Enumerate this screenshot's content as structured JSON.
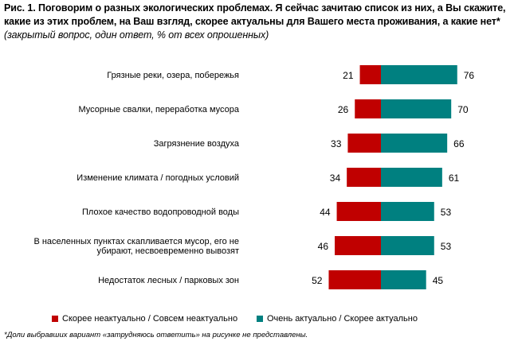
{
  "title": {
    "main": "Рис. 1. Поговорим о разных экологических проблемах. Я сейчас зачитаю список из них, а Вы скажите, какие из этих проблем, на Ваш взгляд, скорее актуальны для Вашего места проживания, а какие нет*",
    "note": "(закрытый вопрос, один ответ, % от всех опрошенных)"
  },
  "footnote": "*Доли выбравших вариант «затрудняюсь ответить» на рисунке не представлены.",
  "colors": {
    "not_relevant": "#c00000",
    "relevant": "#008080"
  },
  "chart_data": {
    "type": "bar",
    "orientation": "horizontal-diverging",
    "categories": [
      "Грязные реки, озера, побережья",
      "Мусорные свалки, переработка мусора",
      "Загрязнение воздуха",
      "Изменение климата / погодных условий",
      "Плохое качество водопроводной воды",
      "В населенных пунктах скапливается мусор, его не убирают, несвоевременно вывозят",
      "Недостаток лесных / парковых зон"
    ],
    "series": [
      {
        "name": "Скорее неактуально / Совсем неактуально",
        "values": [
          21,
          26,
          33,
          34,
          44,
          46,
          52
        ],
        "color": "#c00000"
      },
      {
        "name": "Очень актуально / Скорее актуально",
        "values": [
          76,
          70,
          66,
          61,
          53,
          53,
          45
        ],
        "color": "#008080"
      }
    ],
    "legend_position": "bottom",
    "grid": false
  }
}
